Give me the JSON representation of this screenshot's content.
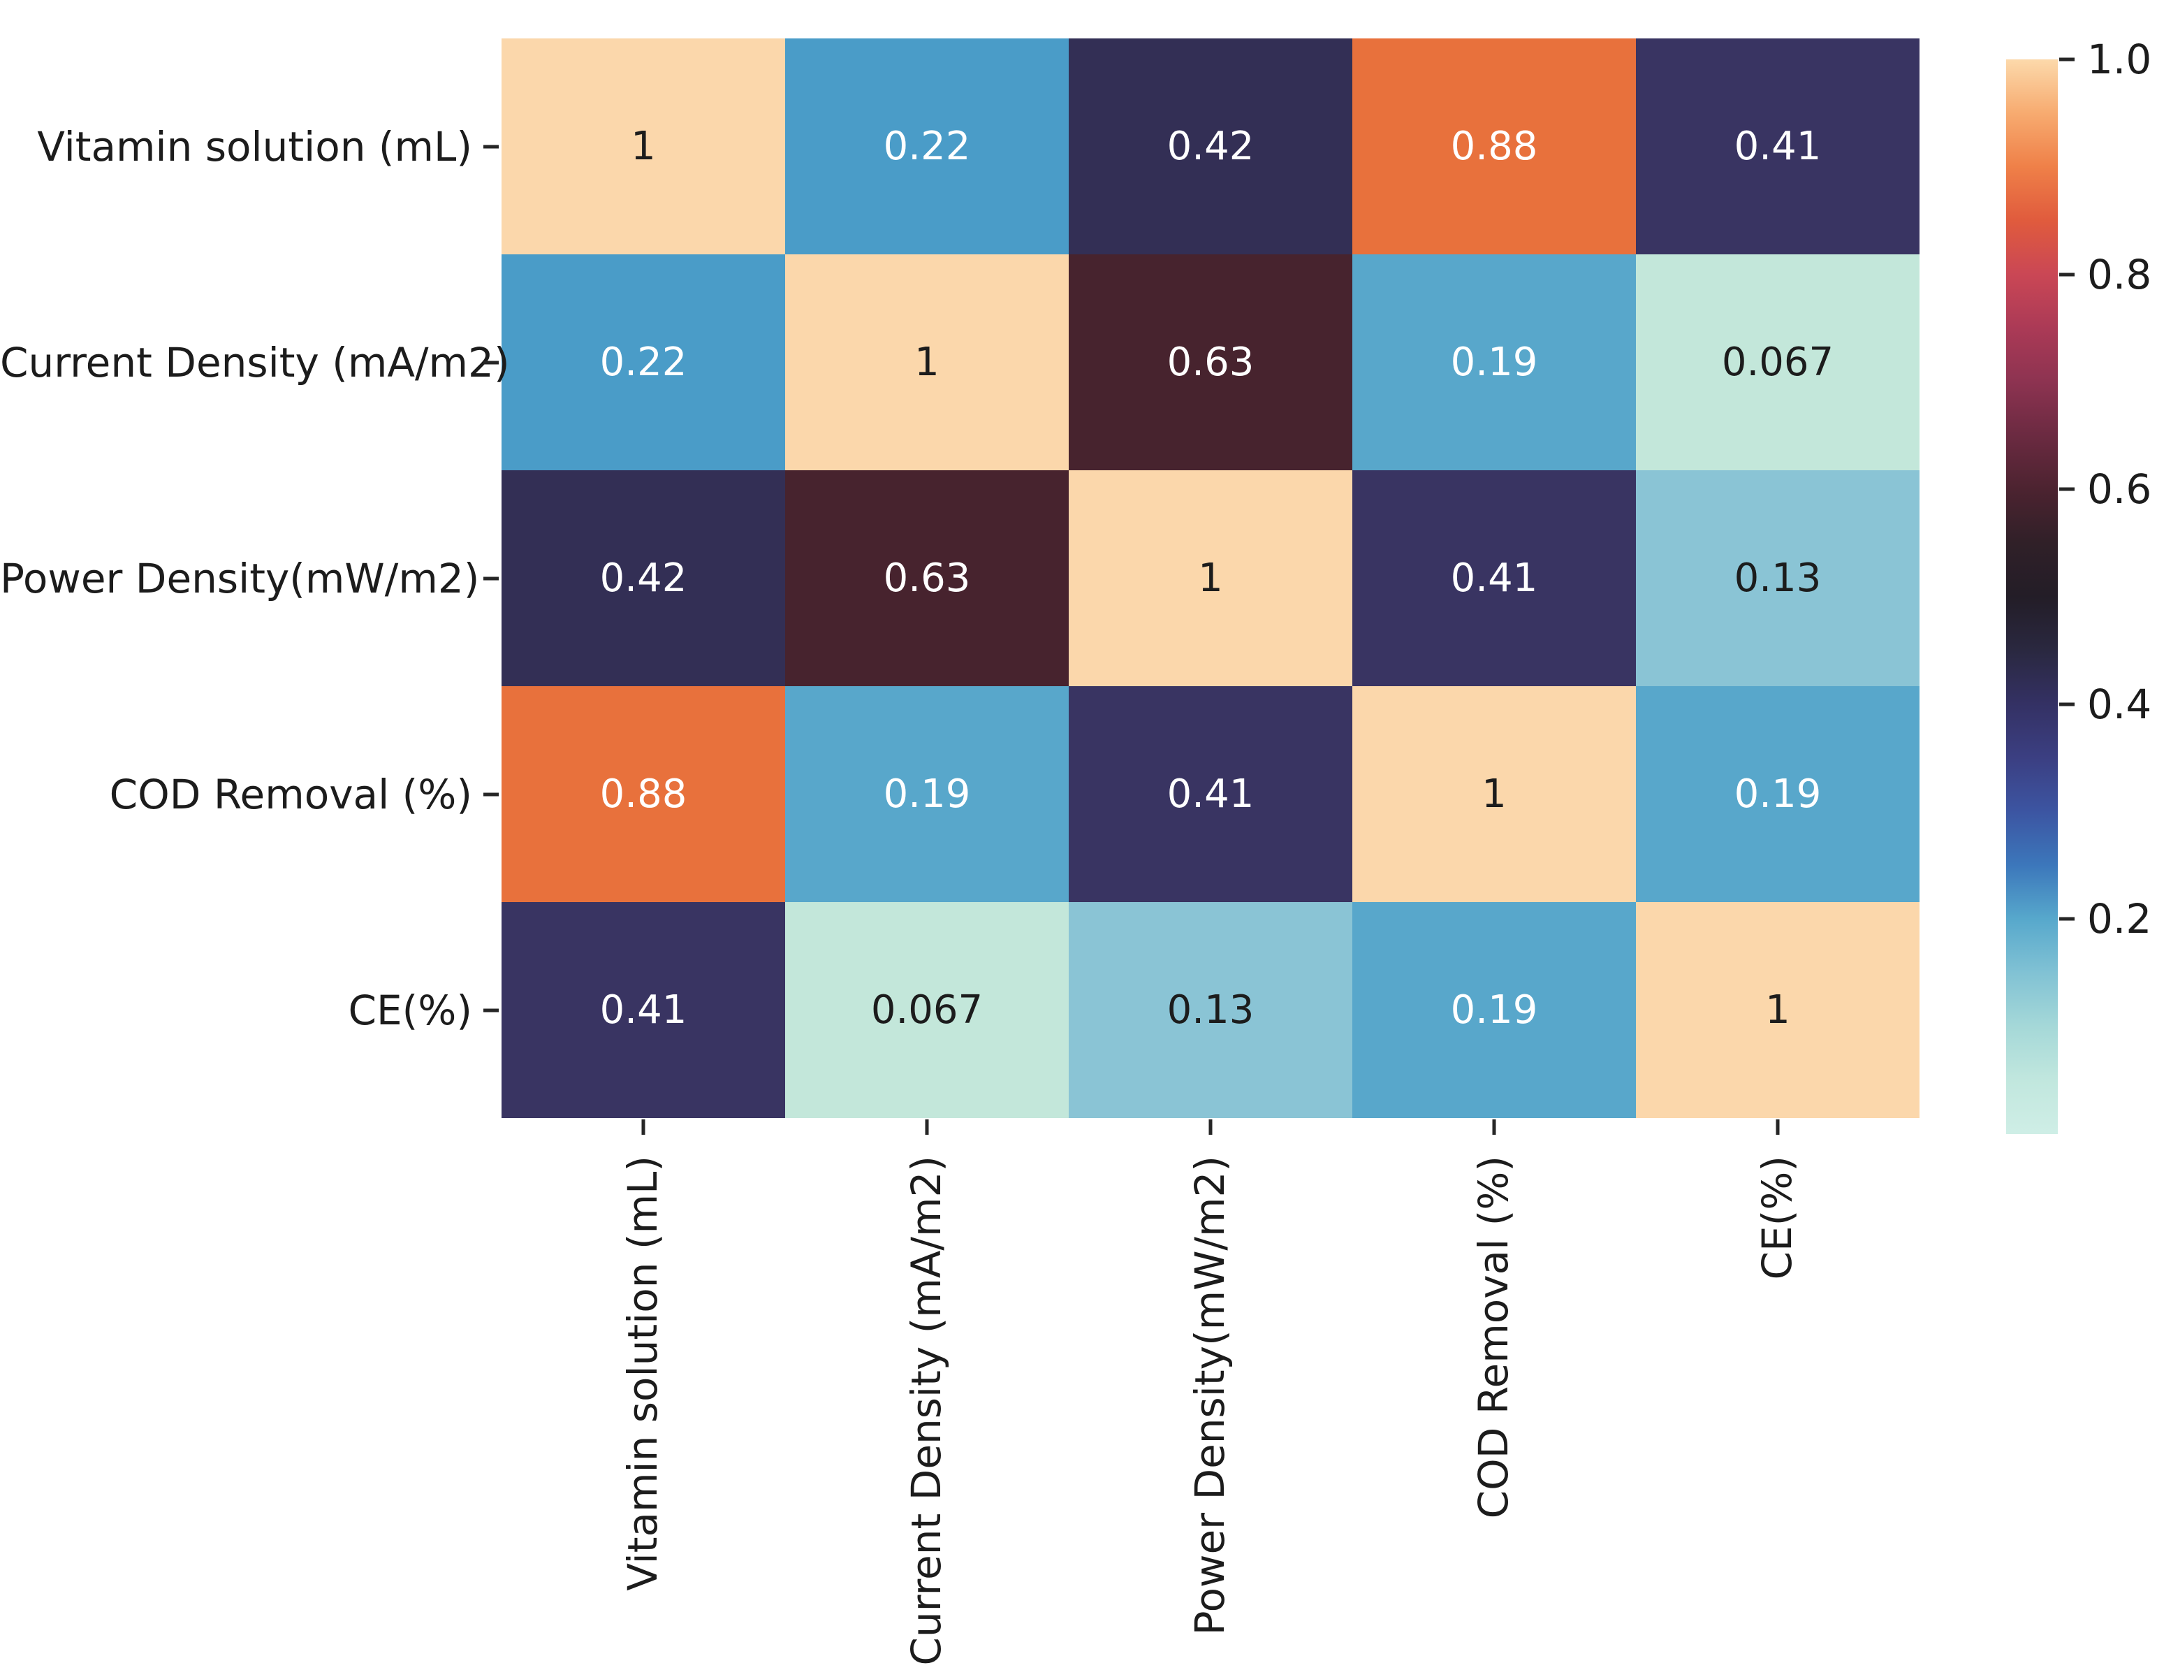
{
  "figure": {
    "background": "#ffffff",
    "text_color": "#1c1c1c"
  },
  "chart_data": {
    "type": "heatmap",
    "title": "",
    "variables": [
      "Vitamin solution (mL)",
      "Current Density (mA/m2)",
      "Power Density(mW/m2)",
      "COD Removal (%)",
      "CE(%)"
    ],
    "matrix": [
      [
        1,
        0.22,
        0.42,
        0.88,
        0.41
      ],
      [
        0.22,
        1,
        0.63,
        0.19,
        0.067
      ],
      [
        0.42,
        0.63,
        1,
        0.41,
        0.13
      ],
      [
        0.88,
        0.19,
        0.41,
        1,
        0.19
      ],
      [
        0.41,
        0.067,
        0.13,
        0.19,
        1
      ]
    ],
    "annotations": [
      [
        "1",
        "0.22",
        "0.42",
        "0.88",
        "0.41"
      ],
      [
        "0.22",
        "1",
        "0.63",
        "0.19",
        "0.067"
      ],
      [
        "0.42",
        "0.63",
        "1",
        "0.41",
        "0.13"
      ],
      [
        "0.88",
        "0.19",
        "0.41",
        "1",
        "0.19"
      ],
      [
        "0.41",
        "0.067",
        "0.13",
        "0.19",
        "1"
      ]
    ],
    "colormap": "icefire",
    "value_styles": {
      "1": {
        "bg": "#fbd7ab",
        "fg": "#1c1c1c"
      },
      "0.88": {
        "bg": "#e8713c",
        "fg": "#ffffff"
      },
      "0.63": {
        "bg": "#47232e",
        "fg": "#ffffff"
      },
      "0.42": {
        "bg": "#332f55",
        "fg": "#ffffff"
      },
      "0.41": {
        "bg": "#393462",
        "fg": "#ffffff"
      },
      "0.22": {
        "bg": "#4a9cc8",
        "fg": "#ffffff"
      },
      "0.19": {
        "bg": "#58a7cb",
        "fg": "#ffffff"
      },
      "0.13": {
        "bg": "#8ac4d5",
        "fg": "#1c1c1c"
      },
      "0.067": {
        "bg": "#c3e7da",
        "fg": "#1c1c1c"
      }
    },
    "colorbar": {
      "position": "right",
      "vmin": 0.0,
      "vmax": 1.0,
      "tick_labels": [
        "1.0",
        "0.8",
        "0.6",
        "0.4",
        "0.2"
      ],
      "tick_values": [
        1.0,
        0.8,
        0.6,
        0.4,
        0.2
      ],
      "gradient_stops": [
        {
          "p": 0,
          "c": "#fcd9ab"
        },
        {
          "p": 5,
          "c": "#f7ab70"
        },
        {
          "p": 10,
          "c": "#ef8048"
        },
        {
          "p": 15,
          "c": "#e05b3d"
        },
        {
          "p": 20,
          "c": "#ca4755"
        },
        {
          "p": 25,
          "c": "#ab3a56"
        },
        {
          "p": 30,
          "c": "#8d3351"
        },
        {
          "p": 35,
          "c": "#6b2a41"
        },
        {
          "p": 40,
          "c": "#4c2330"
        },
        {
          "p": 45,
          "c": "#302028"
        },
        {
          "p": 50,
          "c": "#231d27"
        },
        {
          "p": 55,
          "c": "#2a2840"
        },
        {
          "p": 60,
          "c": "#343164"
        },
        {
          "p": 65,
          "c": "#3b3f82"
        },
        {
          "p": 70,
          "c": "#3c55a2"
        },
        {
          "p": 75,
          "c": "#3c77bb"
        },
        {
          "p": 80,
          "c": "#57a8cc"
        },
        {
          "p": 85,
          "c": "#81c2d4"
        },
        {
          "p": 90,
          "c": "#a5d8d8"
        },
        {
          "p": 95,
          "c": "#c1e7de"
        },
        {
          "p": 100,
          "c": "#cfeee6"
        }
      ]
    },
    "grid": false,
    "legend": null
  }
}
